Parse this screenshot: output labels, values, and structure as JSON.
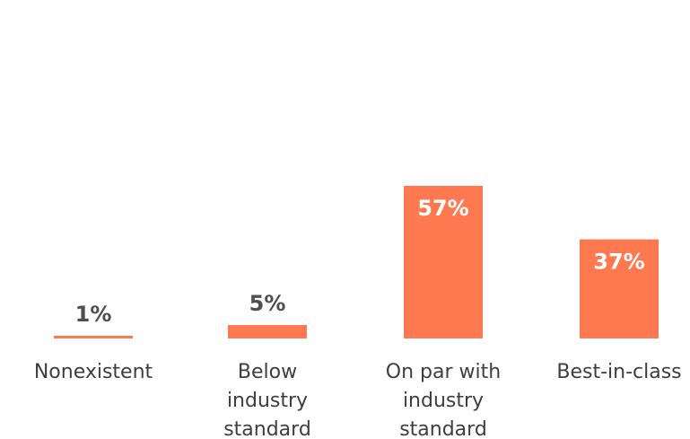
{
  "chart_data": {
    "type": "bar",
    "categories": [
      [
        "Nonexistent"
      ],
      [
        "Below",
        "industry",
        "standard"
      ],
      [
        "On par with",
        "industry",
        "standard"
      ],
      [
        "Best-in-class"
      ]
    ],
    "values": [
      1,
      5,
      57,
      37
    ],
    "value_labels": [
      "1%",
      "5%",
      "57%",
      "37%"
    ],
    "ylim": [
      0,
      57
    ],
    "grid": false,
    "legend": "none",
    "colors": {
      "bar": "#ff7950",
      "label_outside": "#514f4d",
      "label_inside": "#ffffff",
      "category_text": "#3e3e3c"
    }
  }
}
